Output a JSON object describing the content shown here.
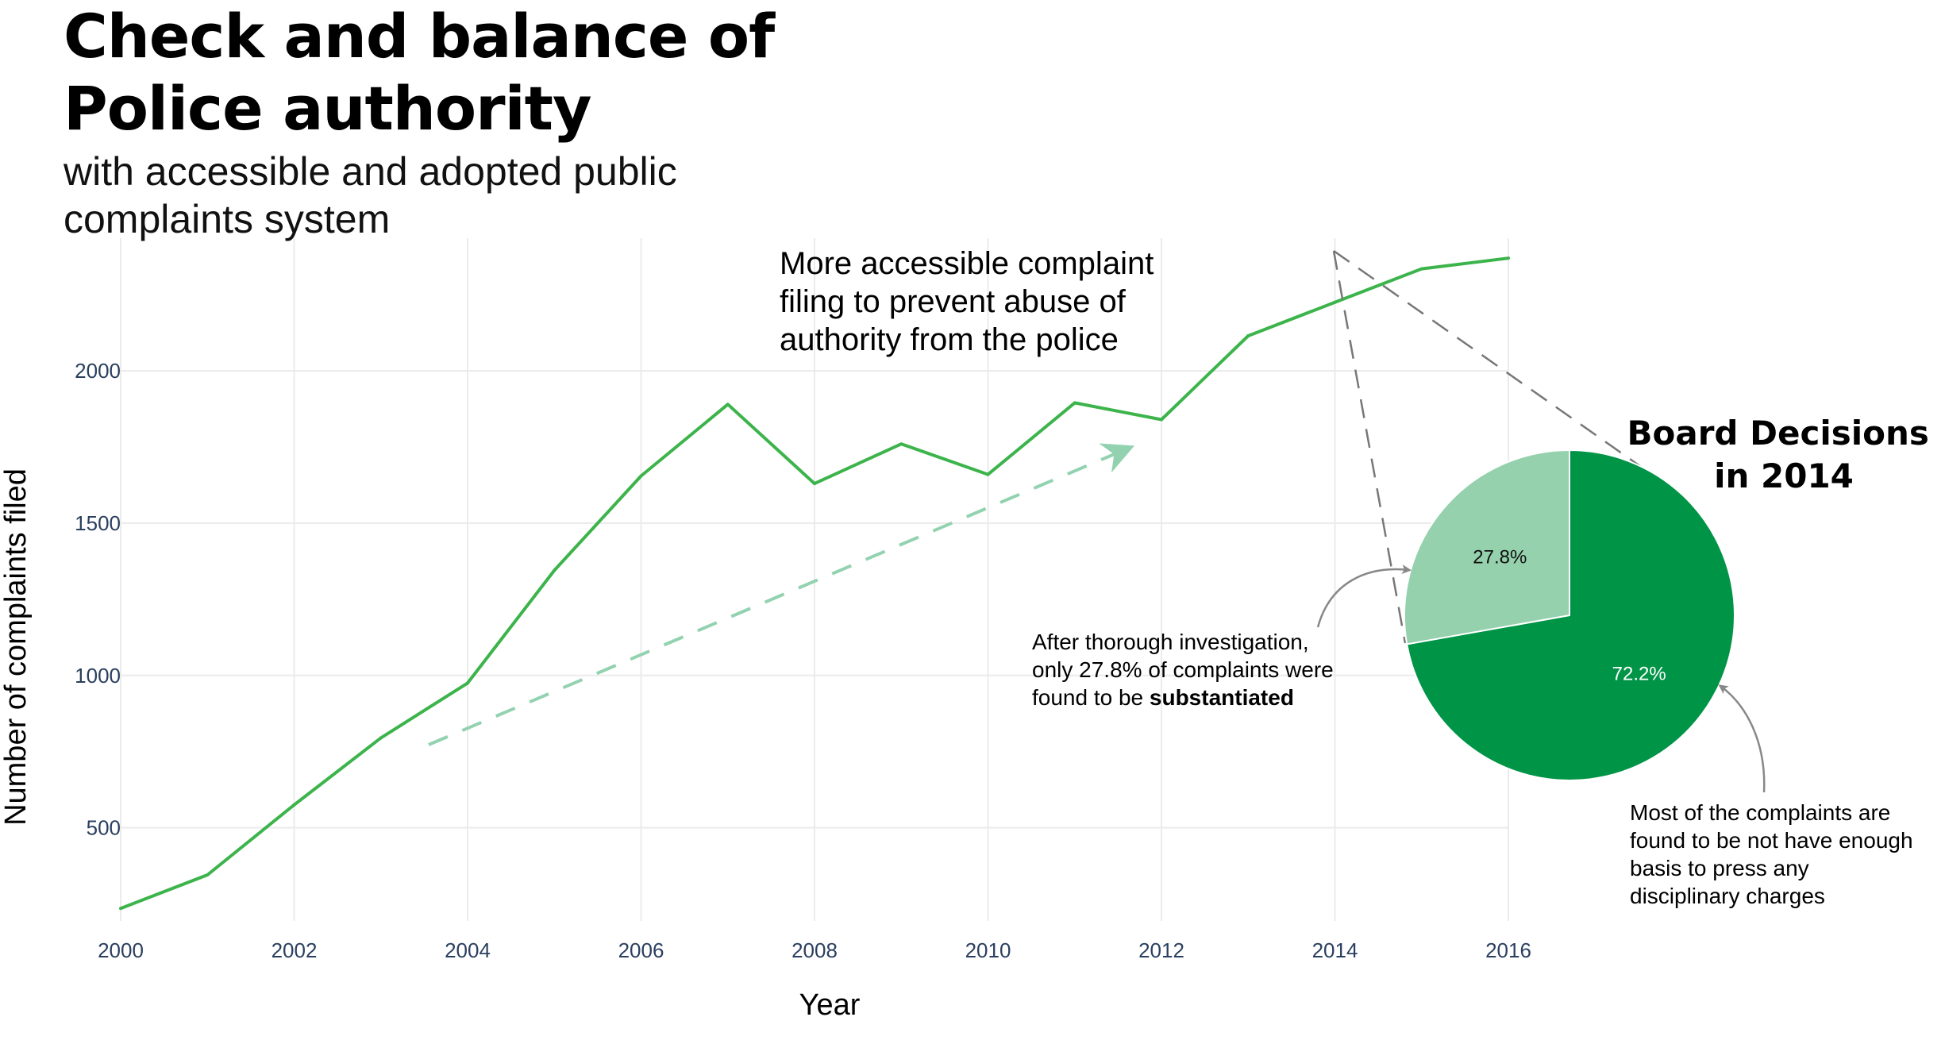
{
  "title_lines": [
    "Check and balance of",
    "Police authority"
  ],
  "subtitle_lines": [
    "with accessible and adopted public",
    "complaints system"
  ],
  "chart_data": [
    {
      "type": "line",
      "xlabel": "Year",
      "ylabel": "Number of complaints filed",
      "x": [
        2000,
        2001,
        2002,
        2003,
        2004,
        2005,
        2006,
        2007,
        2008,
        2009,
        2010,
        2011,
        2012,
        2013,
        2014,
        2015,
        2016
      ],
      "series": [
        {
          "values": [
            235,
            345,
            575,
            795,
            975,
            1345,
            1655,
            1890,
            1630,
            1760,
            1660,
            1895,
            1840,
            2115,
            2225,
            2335,
            2370
          ],
          "color": "#3cb44b"
        }
      ],
      "x_ticks": [
        "2000",
        "2002",
        "2004",
        "2006",
        "2008",
        "2010",
        "2012",
        "2014",
        "2016"
      ],
      "y_ticks": [
        "500",
        "1000",
        "1500",
        "2000"
      ],
      "xlim": [
        2000,
        2016
      ],
      "ylim": [
        220,
        2420
      ],
      "grid": true,
      "trend_arrow_color": "#93d2b0",
      "annotations": [
        {
          "lines": [
            "More accessible complaint",
            "filing to prevent abuse of",
            "authority from the police"
          ]
        }
      ]
    },
    {
      "type": "pie",
      "title_lines": [
        "Board Decisions",
        "in 2014"
      ],
      "categories": [
        "Substantiated",
        "Not substantiated"
      ],
      "values": [
        27.8,
        72.2
      ],
      "labels": [
        "27.8%",
        "72.2%"
      ],
      "colors": [
        "#95d1ad",
        "#009447"
      ],
      "label_colors": [
        "#111111",
        "#ffffff"
      ],
      "annotations": [
        {
          "lines": [
            "After thorough investigation,",
            "only 27.8% of complaints were"
          ],
          "last_line_prefix": "found to be ",
          "last_line_bold": "substantiated"
        },
        {
          "lines": [
            "Most of the complaints are",
            "found to be not have enough",
            "basis to press any",
            "disciplinary charges"
          ]
        }
      ]
    }
  ]
}
